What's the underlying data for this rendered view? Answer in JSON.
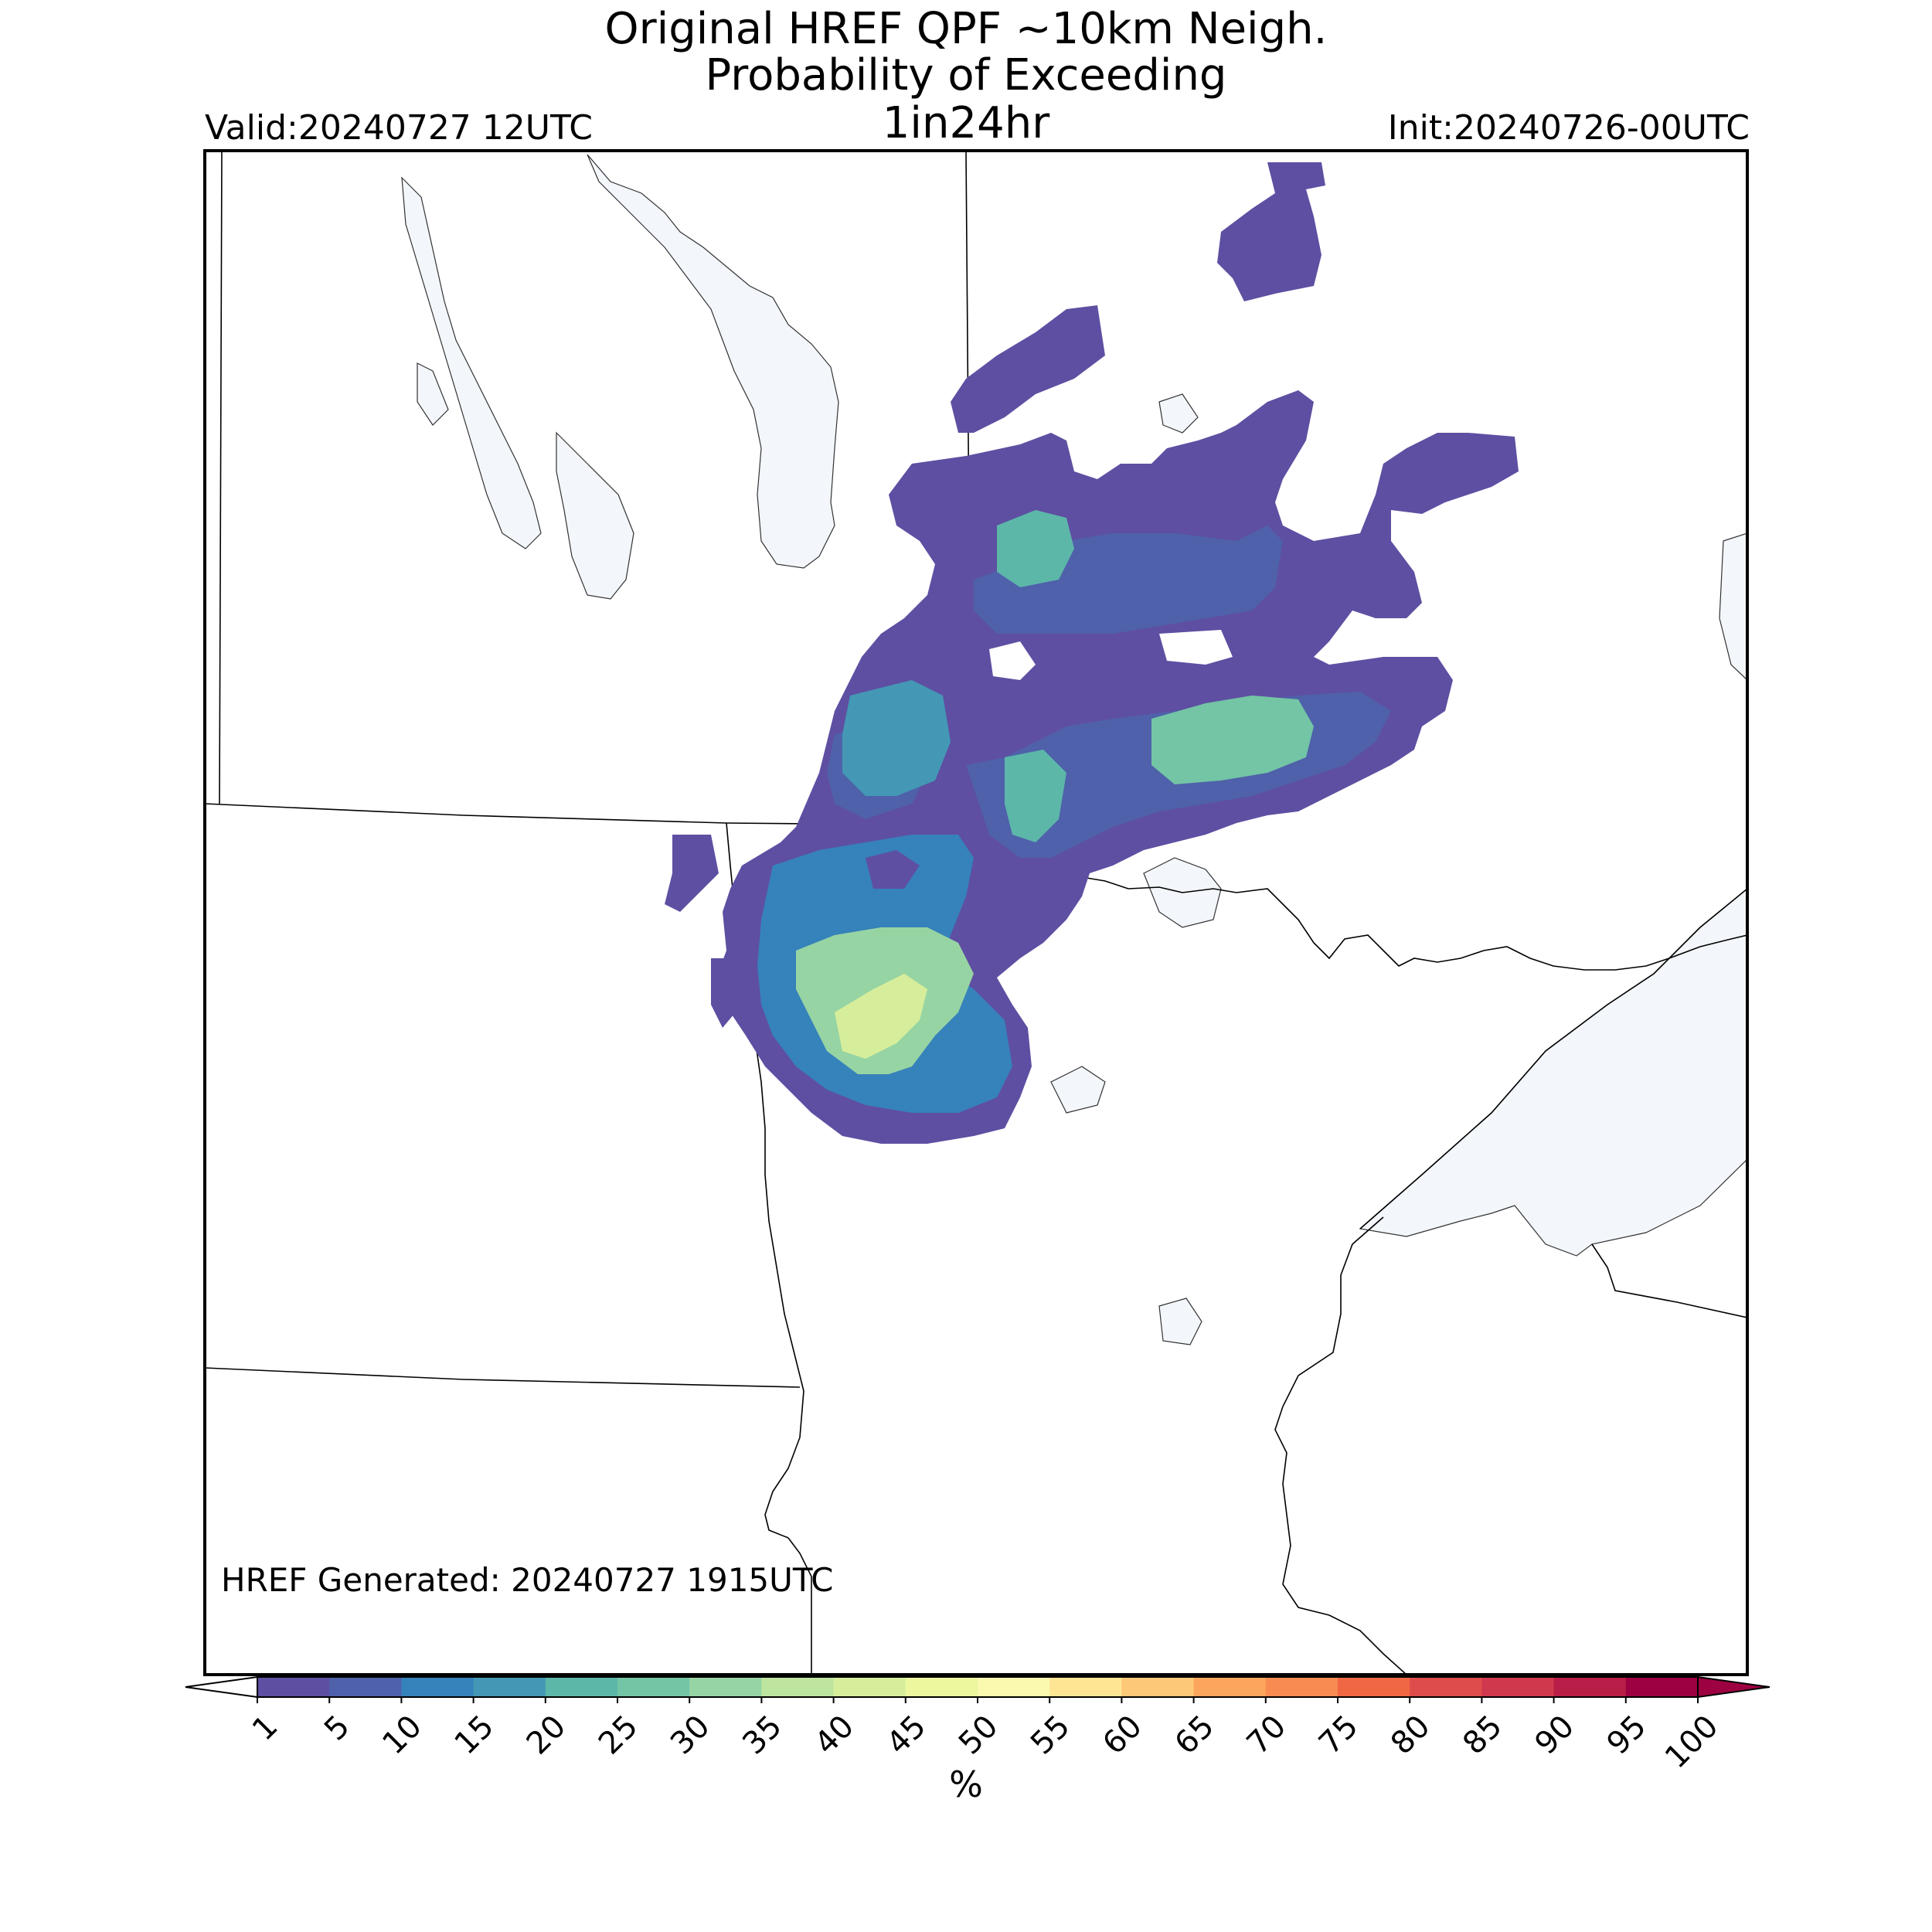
{
  "title": {
    "line1": "Original HREF QPF ~10km Neigh.",
    "line2": "Probability of Exceeding",
    "line3": "1in24hr"
  },
  "valid_label": "Valid:20240727 12UTC",
  "init_label": "Init:20240726-00UTC",
  "generated_label": "HREF Generated: 20240727 1915UTC",
  "colorbar": {
    "ticks": [
      "1",
      "5",
      "10",
      "15",
      "20",
      "25",
      "30",
      "35",
      "40",
      "45",
      "50",
      "55",
      "60",
      "65",
      "70",
      "75",
      "80",
      "85",
      "90",
      "95",
      "100"
    ],
    "colors": [
      "#5e4fa2",
      "#4f61aa",
      "#3682ba",
      "#4498b5",
      "#5cb7a9",
      "#73c5a5",
      "#97d4a4",
      "#bde5a0",
      "#d6ee9b",
      "#ecf79e",
      "#fbf8b0",
      "#fee593",
      "#fdc877",
      "#fca55c",
      "#f88b52",
      "#f06744",
      "#de4d4b",
      "#d0384e",
      "#b91e48",
      "#9e0142"
    ],
    "under_color": "#ffffff",
    "over_color": "#9e0142",
    "unit": "%"
  },
  "map": {
    "water_color": "#f3f6fa",
    "border_color": "#000000",
    "frame_color": "#000000"
  }
}
